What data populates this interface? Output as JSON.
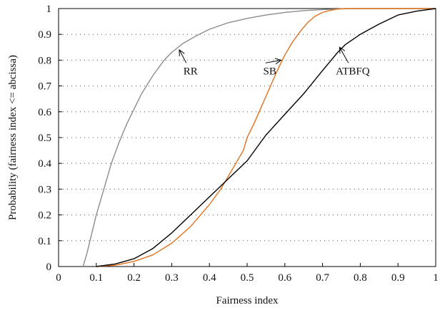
{
  "chart_data": {
    "type": "line",
    "title": "",
    "xlabel": "Fairness index",
    "ylabel": "Probability (fairness index <= abcissa)",
    "xlim": [
      0,
      1
    ],
    "ylim": [
      0,
      1
    ],
    "xticks": [
      "0",
      "0.1",
      "0.2",
      "0.3",
      "0.4",
      "0.5",
      "0.6",
      "0.7",
      "0.8",
      "0.9",
      "1"
    ],
    "yticks": [
      "0",
      "0.1",
      "0.2",
      "0.3",
      "0.4",
      "0.5",
      "0.6",
      "0.7",
      "0.8",
      "0.9",
      "1"
    ],
    "grid": true,
    "legend": "none",
    "series": [
      {
        "name": "RR",
        "color": "#8c8c8c",
        "x": [
          0.065,
          0.075,
          0.09,
          0.1,
          0.12,
          0.14,
          0.16,
          0.18,
          0.2,
          0.22,
          0.25,
          0.28,
          0.3,
          0.33,
          0.36,
          0.4,
          0.45,
          0.5,
          0.55,
          0.6,
          0.65,
          0.7,
          0.75,
          0.8,
          1.0
        ],
        "y": [
          0.0,
          0.05,
          0.14,
          0.2,
          0.3,
          0.4,
          0.48,
          0.55,
          0.61,
          0.67,
          0.74,
          0.8,
          0.83,
          0.865,
          0.89,
          0.92,
          0.945,
          0.962,
          0.975,
          0.985,
          0.992,
          0.996,
          0.999,
          1.0,
          1.0
        ]
      },
      {
        "name": "SB",
        "color": "#e0701c",
        "x": [
          0.1,
          0.15,
          0.2,
          0.25,
          0.3,
          0.35,
          0.4,
          0.43,
          0.45,
          0.47,
          0.49,
          0.5,
          0.52,
          0.55,
          0.58,
          0.6,
          0.62,
          0.64,
          0.66,
          0.68,
          0.7,
          0.72,
          0.74,
          0.76,
          1.0
        ],
        "y": [
          0.0,
          0.005,
          0.02,
          0.045,
          0.09,
          0.155,
          0.24,
          0.3,
          0.35,
          0.4,
          0.45,
          0.5,
          0.56,
          0.66,
          0.76,
          0.82,
          0.87,
          0.91,
          0.945,
          0.97,
          0.985,
          0.993,
          0.998,
          1.0,
          1.0
        ]
      },
      {
        "name": "ATBFQ",
        "color": "#000000",
        "x": [
          0.1,
          0.15,
          0.2,
          0.25,
          0.3,
          0.35,
          0.4,
          0.45,
          0.5,
          0.55,
          0.6,
          0.65,
          0.7,
          0.74,
          0.76,
          0.8,
          0.85,
          0.9,
          0.95,
          1.0
        ],
        "y": [
          0.0,
          0.01,
          0.03,
          0.07,
          0.13,
          0.2,
          0.27,
          0.34,
          0.41,
          0.51,
          0.59,
          0.67,
          0.76,
          0.83,
          0.86,
          0.9,
          0.94,
          0.975,
          0.99,
          1.0
        ]
      }
    ],
    "annotations": [
      {
        "text": "RR",
        "at": [
          0.32,
          0.84
        ],
        "label_at": [
          0.35,
          0.745
        ]
      },
      {
        "text": "SB",
        "at": [
          0.59,
          0.8
        ],
        "label_at": [
          0.56,
          0.745
        ]
      },
      {
        "text": "ATBFQ",
        "at": [
          0.745,
          0.85
        ],
        "label_at": [
          0.78,
          0.745
        ]
      }
    ]
  }
}
